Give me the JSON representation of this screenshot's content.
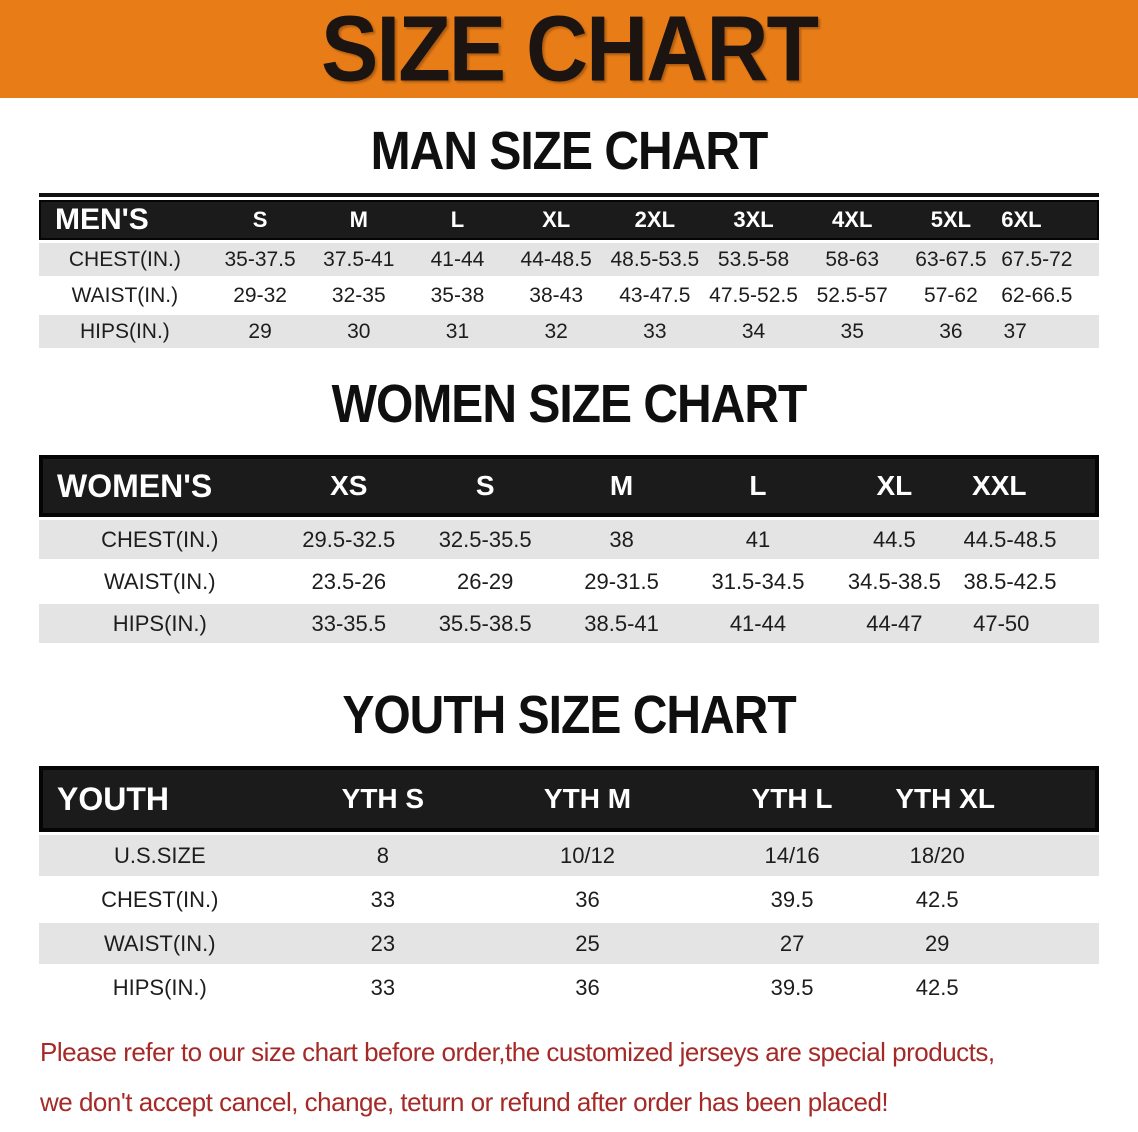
{
  "banner": {
    "title": "SIZE CHART",
    "bg_color": "#E87D18"
  },
  "colors": {
    "header_bg": "#1B1B1B",
    "row_shade": "#E4E4E4",
    "notice_red": "#A52A27"
  },
  "sections": [
    {
      "heading": "MAN SIZE CHART",
      "table": {
        "label": "MEN'S",
        "columns": [
          "S",
          "M",
          "L",
          "XL",
          "2XL",
          "3XL",
          "4XL",
          "5XL",
          "6XL"
        ],
        "rows": [
          {
            "label": "CHEST(IN.)",
            "values": [
              "35-37.5",
              "37.5-41",
              "41-44",
              "44-48.5",
              "48.5-53.5",
              "53.5-58",
              "58-63",
              "63-67.5",
              "67.5-72"
            ]
          },
          {
            "label": "WAIST(IN.)",
            "values": [
              "29-32",
              "32-35",
              "35-38",
              "38-43",
              "43-47.5",
              "47.5-52.5",
              "52.5-57",
              "57-62",
              "62-66.5"
            ]
          },
          {
            "label": "HIPS(IN.)",
            "values": [
              "29",
              "30",
              "31",
              "32",
              "33",
              "34",
              "35",
              "36",
              "37"
            ]
          }
        ]
      }
    },
    {
      "heading": "WOMEN SIZE CHART",
      "table": {
        "label": "WOMEN'S",
        "columns": [
          "XS",
          "S",
          "M",
          "L",
          "XL",
          "XXL"
        ],
        "rows": [
          {
            "label": "CHEST(IN.)",
            "values": [
              "29.5-32.5",
              "32.5-35.5",
              "38",
              "41",
              "44.5",
              "44.5-48.5"
            ]
          },
          {
            "label": "WAIST(IN.)",
            "values": [
              "23.5-26",
              "26-29",
              "29-31.5",
              "31.5-34.5",
              "34.5-38.5",
              "38.5-42.5"
            ]
          },
          {
            "label": "HIPS(IN.)",
            "values": [
              "33-35.5",
              "35.5-38.5",
              "38.5-41",
              "41-44",
              "44-47",
              "47-50"
            ]
          }
        ]
      }
    },
    {
      "heading": "YOUTH SIZE CHART",
      "table": {
        "label": "YOUTH",
        "columns": [
          "YTH S",
          "YTH M",
          "YTH L",
          "YTH XL"
        ],
        "rows": [
          {
            "label": "U.S.SIZE",
            "values": [
              "8",
              "10/12",
              "14/16",
              "18/20"
            ]
          },
          {
            "label": "CHEST(IN.)",
            "values": [
              "33",
              "36",
              "39.5",
              "42.5"
            ]
          },
          {
            "label": "WAIST(IN.)",
            "values": [
              "23",
              "25",
              "27",
              "29"
            ]
          },
          {
            "label": "HIPS(IN.)",
            "values": [
              "33",
              "36",
              "39.5",
              "42.5"
            ]
          }
        ]
      }
    }
  ],
  "notice": {
    "line1": "Please refer to our size chart before order,the customized jerseys are special products,",
    "line2": "we don't accept cancel, change, teturn or refund after order has been placed!"
  }
}
